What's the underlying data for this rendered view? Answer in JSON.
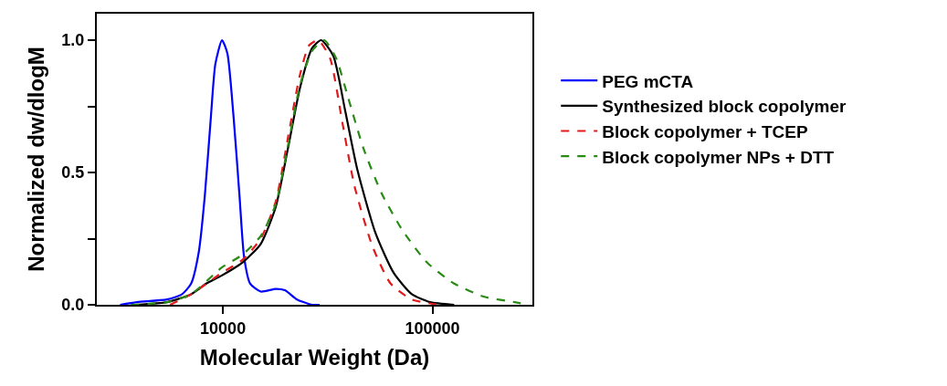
{
  "chart_data": {
    "type": "line",
    "xlabel": "Molecular Weight (Da)",
    "ylabel": "Normalized dw/dlogM",
    "log": "x",
    "xlim": [
      2500,
      300000
    ],
    "xticks": [
      10000,
      100000
    ],
    "ylim": [
      0,
      1.1
    ],
    "yticks": [
      {
        "value": 0,
        "label": "0.0"
      },
      {
        "value": 0.25,
        "label": null
      },
      0.5,
      {
        "value": 0.75,
        "label": null
      },
      {
        "value": 1,
        "label": "1.0"
      }
    ],
    "legend": "right",
    "marker": "none",
    "series": [
      {
        "name": "PEG mCTA",
        "color": "#0000ff",
        "line_style": "solid",
        "x": [
          3230,
          3880,
          5410,
          6380,
          7050,
          7670,
          8190,
          8760,
          9200,
          9900,
          10500,
          11240,
          12000,
          12620,
          13490,
          15150,
          17870,
          19750,
          22590,
          26660,
          28980
        ],
        "values": [
          0,
          0.01,
          0.02,
          0.04,
          0.08,
          0.2,
          0.41,
          0.71,
          0.91,
          1.0,
          0.95,
          0.71,
          0.41,
          0.18,
          0.08,
          0.05,
          0.06,
          0.055,
          0.02,
          0,
          0
        ]
      },
      {
        "name": "Synthesized block copolymer",
        "color": "#000000",
        "line_style": "solid",
        "x": [
          3880,
          5410,
          7050,
          8330,
          9840,
          12410,
          15150,
          17870,
          20420,
          23330,
          26660,
          29440,
          33650,
          38400,
          43820,
          53540,
          65370,
          79770,
          97300,
          127000
        ],
        "values": [
          0,
          0.01,
          0.04,
          0.08,
          0.11,
          0.16,
          0.23,
          0.37,
          0.59,
          0.82,
          0.97,
          1.0,
          0.94,
          0.73,
          0.51,
          0.27,
          0.12,
          0.04,
          0.01,
          0
        ]
      },
      {
        "name": "Block copolymer + TCEP",
        "color": "#e31a1c",
        "line_style": "dashed",
        "x": [
          5600,
          7050,
          9840,
          12410,
          15150,
          17870,
          20420,
          23330,
          25760,
          28520,
          32510,
          37130,
          42420,
          51780,
          63180,
          79770,
          107700
        ],
        "values": [
          0,
          0.04,
          0.12,
          0.17,
          0.25,
          0.39,
          0.63,
          0.87,
          0.98,
          1.0,
          0.93,
          0.69,
          0.45,
          0.22,
          0.08,
          0.02,
          0
        ]
      },
      {
        "name": "Block copolymer NPs + DTT",
        "color": "#2a8a16",
        "line_style": "dashed",
        "x": [
          3630,
          5410,
          7050,
          9840,
          12410,
          15150,
          17870,
          20420,
          23330,
          26660,
          30460,
          34760,
          39680,
          46900,
          57300,
          72110,
          94160,
          127000,
          177000,
          247000,
          287000
        ],
        "values": [
          0,
          0.01,
          0.04,
          0.14,
          0.19,
          0.26,
          0.38,
          0.6,
          0.83,
          0.96,
          1.0,
          0.93,
          0.78,
          0.59,
          0.42,
          0.28,
          0.16,
          0.08,
          0.03,
          0.01,
          0
        ]
      }
    ]
  }
}
